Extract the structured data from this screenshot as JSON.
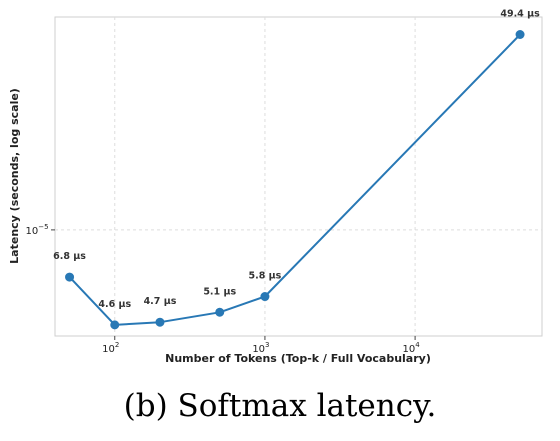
{
  "chart_data": {
    "type": "line",
    "xscale": "log",
    "yscale": "log",
    "xlabel": "Number of Tokens (Top-k / Full Vocabulary)",
    "ylabel": "Latency (seconds, log scale)",
    "grid": true,
    "x_ticks": [
      {
        "value": 100,
        "base": "10",
        "exp": "2"
      },
      {
        "value": 1000,
        "base": "10",
        "exp": "3"
      },
      {
        "value": 10000,
        "base": "10",
        "exp": "4"
      }
    ],
    "y_ticks": [
      {
        "value": 1e-05,
        "base": "10",
        "exp": "−5"
      }
    ],
    "xlim": [
      40,
      70000
    ],
    "ylim": [
      4.2e-06,
      5.7e-05
    ],
    "series": [
      {
        "color": "#2878b5",
        "points": [
          {
            "x": 50,
            "y": 6.8e-06,
            "label": "6.8 µs"
          },
          {
            "x": 100,
            "y": 4.6e-06,
            "label": "4.6 µs"
          },
          {
            "x": 200,
            "y": 4.7e-06,
            "label": "4.7 µs"
          },
          {
            "x": 500,
            "y": 5.1e-06,
            "label": "5.1 µs"
          },
          {
            "x": 1000,
            "y": 5.8e-06,
            "label": "5.8 µs"
          },
          {
            "x": 50000,
            "y": 4.94e-05,
            "label": "49.4 µs"
          }
        ]
      }
    ]
  },
  "caption": "(b) Softmax latency."
}
